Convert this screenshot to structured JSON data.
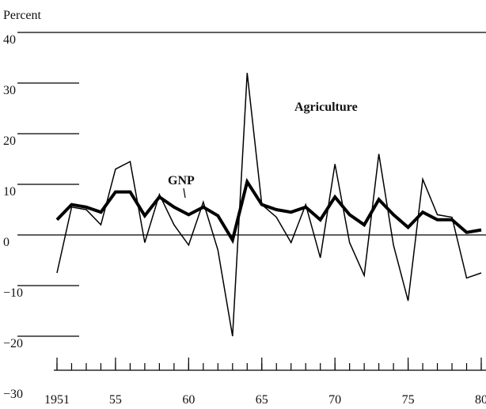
{
  "chart_data": {
    "type": "line",
    "y_label": "Percent",
    "annotations": [
      "Agriculture",
      "GNP"
    ],
    "x": [
      1951,
      1952,
      1953,
      1954,
      1955,
      1956,
      1957,
      1958,
      1959,
      1960,
      1961,
      1962,
      1963,
      1964,
      1965,
      1966,
      1967,
      1968,
      1969,
      1970,
      1971,
      1972,
      1973,
      1974,
      1975,
      1976,
      1977,
      1978,
      1979,
      1980
    ],
    "series": [
      {
        "name": "GNP",
        "color": "#000000",
        "width": 4,
        "values": [
          3,
          6,
          5.5,
          4.5,
          8.5,
          8.5,
          3.8,
          7.5,
          5.5,
          4,
          5.5,
          3.8,
          -1,
          10.5,
          6,
          5,
          4.5,
          5.5,
          3,
          7.5,
          4,
          2,
          7,
          4,
          1.5,
          4.5,
          3,
          3,
          0.5,
          1
        ]
      },
      {
        "name": "Agriculture",
        "color": "#000000",
        "width": 1.5,
        "values": [
          -7.5,
          5.5,
          5,
          2,
          13,
          14.5,
          -1.5,
          8,
          2,
          -2,
          6.5,
          -3,
          -20,
          32,
          6,
          3.5,
          -1.5,
          6,
          -4.5,
          14,
          -1.5,
          -8,
          16,
          -2,
          -13,
          11,
          4,
          3.5,
          -8.5,
          -7.5
        ]
      }
    ],
    "xlim": [
      1951,
      1980
    ],
    "xticks": [
      1951,
      {
        "value": 1955,
        "label": "55"
      },
      {
        "value": 1960,
        "label": "60"
      },
      {
        "value": 1965,
        "label": "65"
      },
      {
        "value": 1970,
        "label": "70"
      },
      {
        "value": 1975,
        "label": "75"
      },
      {
        "value": 1980,
        "label": "80"
      }
    ],
    "ylim": [
      -30,
      40
    ],
    "yticks": [
      {
        "value": -30,
        "label": "−30"
      },
      {
        "value": -20,
        "label": "−20"
      },
      {
        "value": -10,
        "label": "−10"
      },
      0,
      10,
      20,
      30,
      40
    ]
  }
}
